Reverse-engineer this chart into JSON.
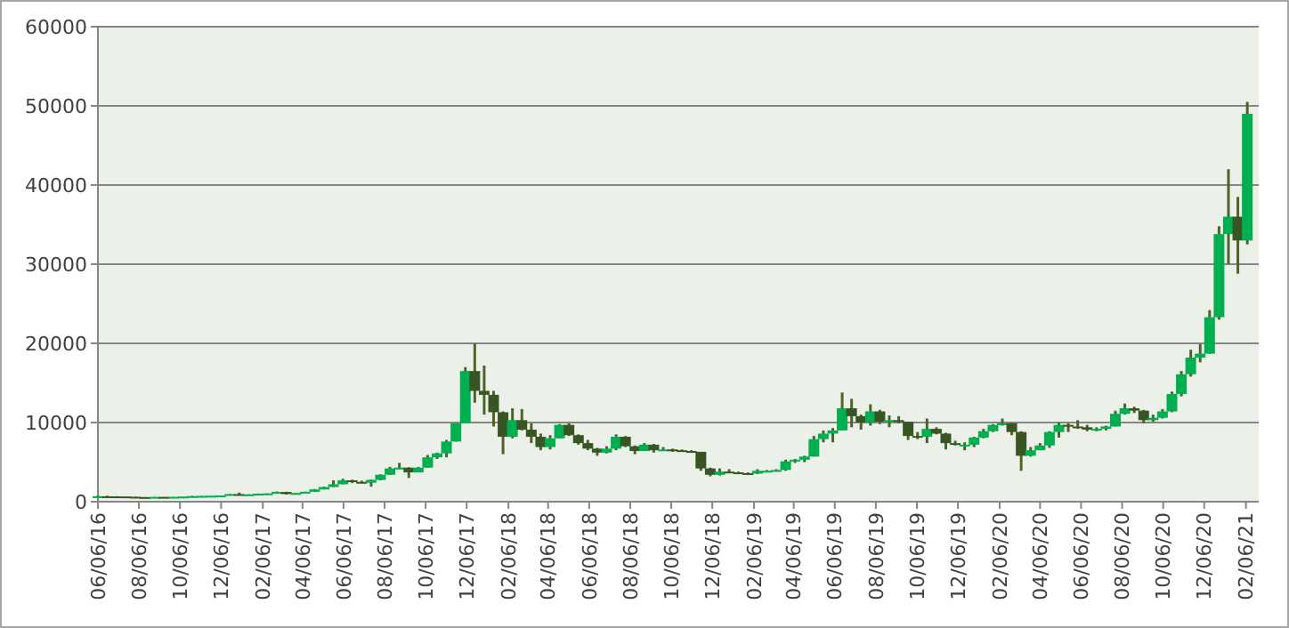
{
  "chart_data": {
    "type": "candlestick",
    "x": [
      "2016-06-06",
      "2016-06-20",
      "2016-07-04",
      "2016-07-18",
      "2016-08-01",
      "2016-08-15",
      "2016-08-29",
      "2016-09-12",
      "2016-09-26",
      "2016-10-10",
      "2016-10-24",
      "2016-11-07",
      "2016-11-21",
      "2016-12-05",
      "2016-12-19",
      "2017-01-02",
      "2017-01-16",
      "2017-01-30",
      "2017-02-13",
      "2017-02-27",
      "2017-03-13",
      "2017-03-27",
      "2017-04-10",
      "2017-04-24",
      "2017-05-08",
      "2017-05-22",
      "2017-06-05",
      "2017-06-19",
      "2017-07-03",
      "2017-07-17",
      "2017-07-31",
      "2017-08-14",
      "2017-08-28",
      "2017-09-11",
      "2017-09-25",
      "2017-10-09",
      "2017-10-23",
      "2017-11-06",
      "2017-11-20",
      "2017-12-04",
      "2017-12-18",
      "2018-01-01",
      "2018-01-15",
      "2018-01-29",
      "2018-02-12",
      "2018-02-26",
      "2018-03-12",
      "2018-03-26",
      "2018-04-09",
      "2018-04-23",
      "2018-05-07",
      "2018-05-21",
      "2018-06-04",
      "2018-06-18",
      "2018-07-02",
      "2018-07-16",
      "2018-07-30",
      "2018-08-13",
      "2018-08-27",
      "2018-09-10",
      "2018-09-24",
      "2018-10-08",
      "2018-10-22",
      "2018-11-05",
      "2018-11-19",
      "2018-12-03",
      "2018-12-17",
      "2018-12-31",
      "2019-01-14",
      "2019-01-28",
      "2019-02-11",
      "2019-02-25",
      "2019-03-11",
      "2019-03-25",
      "2019-04-08",
      "2019-04-22",
      "2019-05-06",
      "2019-05-20",
      "2019-06-03",
      "2019-06-17",
      "2019-07-01",
      "2019-07-15",
      "2019-07-29",
      "2019-08-12",
      "2019-08-26",
      "2019-09-09",
      "2019-09-23",
      "2019-10-07",
      "2019-10-21",
      "2019-11-04",
      "2019-11-18",
      "2019-12-02",
      "2019-12-16",
      "2019-12-30",
      "2020-01-13",
      "2020-01-27",
      "2020-02-10",
      "2020-02-24",
      "2020-03-09",
      "2020-03-23",
      "2020-04-06",
      "2020-04-20",
      "2020-05-04",
      "2020-05-18",
      "2020-06-01",
      "2020-06-15",
      "2020-06-29",
      "2020-07-13",
      "2020-07-27",
      "2020-08-10",
      "2020-08-24",
      "2020-09-07",
      "2020-09-21",
      "2020-10-05",
      "2020-10-19",
      "2020-11-02",
      "2020-11-16",
      "2020-11-30",
      "2020-12-14",
      "2020-12-28",
      "2021-01-11",
      "2021-01-25",
      "2021-02-08"
    ],
    "ohlc": [
      [
        580,
        780,
        570,
        680
      ],
      [
        680,
        760,
        600,
        670
      ],
      [
        670,
        700,
        640,
        660
      ],
      [
        660,
        680,
        620,
        620
      ],
      [
        620,
        630,
        540,
        580
      ],
      [
        580,
        590,
        560,
        570
      ],
      [
        570,
        610,
        570,
        605
      ],
      [
        605,
        610,
        590,
        600
      ],
      [
        600,
        620,
        600,
        615
      ],
      [
        615,
        650,
        610,
        645
      ],
      [
        645,
        740,
        640,
        700
      ],
      [
        700,
        740,
        690,
        730
      ],
      [
        730,
        760,
        720,
        750
      ],
      [
        750,
        790,
        750,
        780
      ],
      [
        780,
        980,
        780,
        960
      ],
      [
        960,
        1150,
        780,
        820
      ],
      [
        820,
        930,
        820,
        920
      ],
      [
        920,
        1030,
        910,
        1010
      ],
      [
        1010,
        1050,
        990,
        1040
      ],
      [
        1040,
        1290,
        1040,
        1230
      ],
      [
        1230,
        1250,
        900,
        960
      ],
      [
        960,
        1100,
        950,
        1090
      ],
      [
        1090,
        1260,
        1090,
        1250
      ],
      [
        1250,
        1600,
        1250,
        1550
      ],
      [
        1550,
        1900,
        1550,
        1850
      ],
      [
        1850,
        2700,
        1850,
        2200
      ],
      [
        2200,
        2900,
        2200,
        2700
      ],
      [
        2700,
        2780,
        2350,
        2500
      ],
      [
        2500,
        2650,
        2350,
        2400
      ],
      [
        2400,
        2800,
        1900,
        2750
      ],
      [
        2750,
        3450,
        2700,
        3400
      ],
      [
        3400,
        4400,
        3400,
        4200
      ],
      [
        4200,
        4900,
        4100,
        4300
      ],
      [
        4300,
        4350,
        3000,
        3700
      ],
      [
        3700,
        4400,
        3700,
        4300
      ],
      [
        4300,
        5900,
        4300,
        5600
      ],
      [
        5600,
        6200,
        5400,
        6100
      ],
      [
        6100,
        7800,
        5600,
        7600
      ],
      [
        7600,
        9900,
        7600,
        9900
      ],
      [
        9900,
        17000,
        9900,
        16500
      ],
      [
        16500,
        20000,
        12500,
        14000
      ],
      [
        14000,
        17200,
        11000,
        13500
      ],
      [
        13500,
        14000,
        9500,
        11300
      ],
      [
        11300,
        11400,
        6000,
        8200
      ],
      [
        8200,
        11800,
        8000,
        10300
      ],
      [
        10300,
        11700,
        9000,
        9100
      ],
      [
        9100,
        9900,
        7400,
        8200
      ],
      [
        8200,
        8600,
        6500,
        6900
      ],
      [
        6900,
        8400,
        6600,
        8000
      ],
      [
        8000,
        9800,
        8000,
        9700
      ],
      [
        9700,
        9900,
        8300,
        8400
      ],
      [
        8400,
        8500,
        7200,
        7400
      ],
      [
        7400,
        7800,
        6500,
        6700
      ],
      [
        6700,
        6800,
        5800,
        6200
      ],
      [
        6200,
        7000,
        6100,
        6700
      ],
      [
        6700,
        8500,
        6500,
        8200
      ],
      [
        8200,
        8300,
        6900,
        7000
      ],
      [
        7000,
        7100,
        6000,
        6400
      ],
      [
        6400,
        7400,
        6400,
        7200
      ],
      [
        7200,
        7300,
        6200,
        6500
      ],
      [
        6500,
        6900,
        6400,
        6600
      ],
      [
        6600,
        6700,
        6300,
        6500
      ],
      [
        6500,
        6600,
        6300,
        6400
      ],
      [
        6400,
        6500,
        6200,
        6300
      ],
      [
        6300,
        6300,
        3900,
        4200
      ],
      [
        4200,
        4300,
        3200,
        3400
      ],
      [
        3400,
        4200,
        3300,
        3800
      ],
      [
        3800,
        4100,
        3600,
        3700
      ],
      [
        3700,
        3800,
        3500,
        3600
      ],
      [
        3600,
        3700,
        3400,
        3550
      ],
      [
        3550,
        4100,
        3500,
        3900
      ],
      [
        3900,
        4000,
        3700,
        3900
      ],
      [
        3900,
        4100,
        3800,
        4000
      ],
      [
        4000,
        5300,
        3900,
        5100
      ],
      [
        5100,
        5400,
        4900,
        5300
      ],
      [
        5300,
        5800,
        5000,
        5700
      ],
      [
        5700,
        8300,
        5700,
        7900
      ],
      [
        7900,
        9000,
        7500,
        8600
      ],
      [
        8600,
        9300,
        7500,
        9000
      ],
      [
        9000,
        13800,
        9000,
        11800
      ],
      [
        11800,
        13000,
        9400,
        10800
      ],
      [
        10800,
        11000,
        9100,
        10000
      ],
      [
        10000,
        12300,
        9600,
        11400
      ],
      [
        11400,
        11600,
        9800,
        10100
      ],
      [
        10100,
        10900,
        9400,
        10300
      ],
      [
        10300,
        10800,
        9900,
        10100
      ],
      [
        10100,
        10100,
        7800,
        8300
      ],
      [
        8300,
        8800,
        7900,
        8200
      ],
      [
        8200,
        10500,
        7400,
        9200
      ],
      [
        9200,
        9400,
        8500,
        8600
      ],
      [
        8600,
        8700,
        6600,
        7400
      ],
      [
        7400,
        7700,
        7100,
        7200
      ],
      [
        7200,
        7500,
        6500,
        7200
      ],
      [
        7200,
        8200,
        6900,
        8100
      ],
      [
        8100,
        9200,
        8000,
        8900
      ],
      [
        8900,
        9800,
        8800,
        9700
      ],
      [
        9700,
        10500,
        9600,
        9900
      ],
      [
        9900,
        9950,
        8400,
        8800
      ],
      [
        8800,
        8900,
        3900,
        5800
      ],
      [
        5800,
        6900,
        5700,
        6500
      ],
      [
        6500,
        7400,
        6500,
        7100
      ],
      [
        7100,
        8900,
        6800,
        8800
      ],
      [
        8800,
        10000,
        8100,
        9700
      ],
      [
        9700,
        9900,
        8800,
        9500
      ],
      [
        9500,
        10300,
        9200,
        9400
      ],
      [
        9400,
        9700,
        8900,
        9100
      ],
      [
        9100,
        9400,
        8900,
        9200
      ],
      [
        9200,
        9600,
        9000,
        9500
      ],
      [
        9500,
        11500,
        9500,
        11100
      ],
      [
        11100,
        12400,
        11000,
        11800
      ],
      [
        11800,
        12000,
        11200,
        11500
      ],
      [
        11500,
        11600,
        9900,
        10300
      ],
      [
        10300,
        11000,
        10100,
        10600
      ],
      [
        10600,
        11700,
        10500,
        11400
      ],
      [
        11400,
        13900,
        11300,
        13600
      ],
      [
        13600,
        16500,
        13300,
        16100
      ],
      [
        16100,
        19200,
        15800,
        18200
      ],
      [
        18200,
        19900,
        17600,
        18700
      ],
      [
        18700,
        24200,
        18700,
        23300
      ],
      [
        23300,
        34800,
        23000,
        33800
      ],
      [
        33800,
        42000,
        30000,
        36000
      ],
      [
        36000,
        38500,
        28800,
        33000
      ],
      [
        33000,
        50500,
        32500,
        49000
      ]
    ],
    "colors": [
      "#00b050",
      "#375623",
      "#375623",
      "#375623",
      "#375623",
      "#375623",
      "#00b050",
      "#375623",
      "#00b050",
      "#00b050",
      "#00b050",
      "#00b050",
      "#00b050",
      "#00b050",
      "#00b050",
      "#375623",
      "#00b050",
      "#00b050",
      "#00b050",
      "#00b050",
      "#375623",
      "#00b050",
      "#00b050",
      "#00b050",
      "#00b050",
      "#00b050",
      "#00b050",
      "#375623",
      "#375623",
      "#00b050",
      "#00b050",
      "#00b050",
      "#00b050",
      "#375623",
      "#00b050",
      "#00b050",
      "#00b050",
      "#00b050",
      "#00b050",
      "#00b050",
      "#375623",
      "#375623",
      "#375623",
      "#375623",
      "#00b050",
      "#375623",
      "#375623",
      "#375623",
      "#00b050",
      "#00b050",
      "#375623",
      "#375623",
      "#375623",
      "#375623",
      "#00b050",
      "#00b050",
      "#375623",
      "#375623",
      "#00b050",
      "#375623",
      "#00b050",
      "#375623",
      "#375623",
      "#375623",
      "#375623",
      "#375623",
      "#00b050",
      "#375623",
      "#375623",
      "#375623",
      "#00b050",
      "#00b050",
      "#00b050",
      "#00b050",
      "#00b050",
      "#00b050",
      "#00b050",
      "#00b050",
      "#00b050",
      "#00b050",
      "#375623",
      "#375623",
      "#00b050",
      "#375623",
      "#00b050",
      "#375623",
      "#375623",
      "#375623",
      "#00b050",
      "#375623",
      "#375623",
      "#375623",
      "#00b050",
      "#00b050",
      "#00b050",
      "#00b050",
      "#00b050",
      "#375623",
      "#375623",
      "#00b050",
      "#00b050",
      "#00b050",
      "#00b050",
      "#375623",
      "#375623",
      "#375623",
      "#00b050",
      "#00b050",
      "#00b050",
      "#00b050",
      "#375623",
      "#375623",
      "#00b050",
      "#00b050",
      "#00b050",
      "#00b050",
      "#00b050",
      "#00b050",
      "#00b050",
      "#00b050",
      "#00b050",
      "#375623",
      "#00b050"
    ],
    "xlim": [
      "2016-06-06",
      "2021-02-25"
    ],
    "xticks": [
      {
        "value": "2016-06-06",
        "label": "06/06/16"
      },
      {
        "value": "2016-08-06",
        "label": "08/06/16"
      },
      {
        "value": "2016-10-06",
        "label": "10/06/16"
      },
      {
        "value": "2016-12-06",
        "label": "12/06/16"
      },
      {
        "value": "2017-02-06",
        "label": "02/06/17"
      },
      {
        "value": "2017-04-06",
        "label": "04/06/17"
      },
      {
        "value": "2017-06-06",
        "label": "06/06/17"
      },
      {
        "value": "2017-08-06",
        "label": "08/06/17"
      },
      {
        "value": "2017-10-06",
        "label": "10/06/17"
      },
      {
        "value": "2017-12-06",
        "label": "12/06/17"
      },
      {
        "value": "2018-02-06",
        "label": "02/06/18"
      },
      {
        "value": "2018-04-06",
        "label": "04/06/18"
      },
      {
        "value": "2018-06-06",
        "label": "06/06/18"
      },
      {
        "value": "2018-08-06",
        "label": "08/06/18"
      },
      {
        "value": "2018-10-06",
        "label": "10/06/18"
      },
      {
        "value": "2018-12-06",
        "label": "12/06/18"
      },
      {
        "value": "2019-02-06",
        "label": "02/06/19"
      },
      {
        "value": "2019-04-06",
        "label": "04/06/19"
      },
      {
        "value": "2019-06-06",
        "label": "06/06/19"
      },
      {
        "value": "2019-08-06",
        "label": "08/06/19"
      },
      {
        "value": "2019-10-06",
        "label": "10/06/19"
      },
      {
        "value": "2019-12-06",
        "label": "12/06/19"
      },
      {
        "value": "2020-02-06",
        "label": "02/06/20"
      },
      {
        "value": "2020-04-06",
        "label": "04/06/20"
      },
      {
        "value": "2020-06-06",
        "label": "06/06/20"
      },
      {
        "value": "2020-08-06",
        "label": "08/06/20"
      },
      {
        "value": "2020-10-06",
        "label": "10/06/20"
      },
      {
        "value": "2020-12-06",
        "label": "12/06/20"
      },
      {
        "value": "2021-02-06",
        "label": "02/06/21"
      }
    ],
    "ylim": [
      0,
      60000
    ],
    "yticks": [
      0,
      10000,
      20000,
      30000,
      40000,
      50000,
      60000
    ],
    "grid": "y"
  }
}
